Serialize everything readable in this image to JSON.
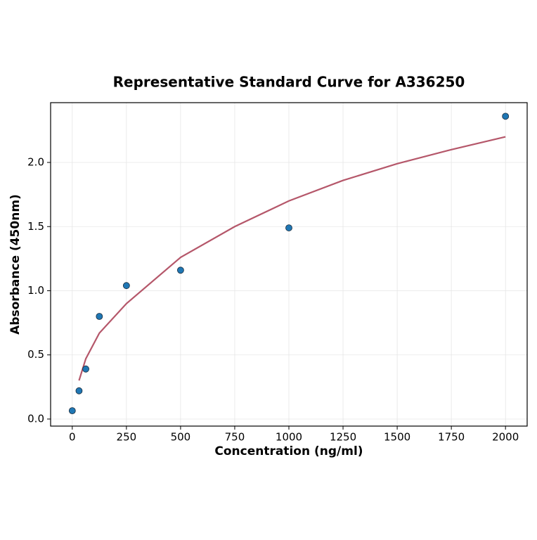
{
  "chart_data": {
    "type": "scatter",
    "title": "Representative Standard Curve for A336250",
    "x_label": "Concentration (ng/ml)",
    "y_label": "Absorbance (450nm)",
    "series": [
      {
        "type": "line",
        "color": "#b5576a",
        "x": [
          31.25,
          62.5,
          125,
          250,
          500,
          750,
          1000,
          1250,
          1500,
          1750,
          2000
        ],
        "values": [
          0.3,
          0.47,
          0.67,
          0.9,
          1.26,
          1.5,
          1.7,
          1.86,
          1.99,
          2.1,
          2.2
        ]
      },
      {
        "type": "scatter",
        "color": "#1f77b4",
        "x": [
          0,
          31.25,
          62.5,
          125,
          250,
          500,
          1000,
          2000
        ],
        "values": [
          0.065,
          0.22,
          0.39,
          0.8,
          1.04,
          1.16,
          1.49,
          2.36
        ]
      }
    ],
    "xlim": [
      -100,
      2100
    ],
    "ylim": [
      -0.055,
      2.466
    ],
    "xticks": [
      0,
      250,
      500,
      750,
      1000,
      1250,
      1500,
      1750,
      2000
    ],
    "yticks": [
      {
        "value": 0,
        "label": "0.0"
      },
      0.5,
      {
        "value": 1,
        "label": "1.0"
      },
      1.5,
      {
        "value": 2,
        "label": "2.0"
      }
    ],
    "grid": true
  }
}
